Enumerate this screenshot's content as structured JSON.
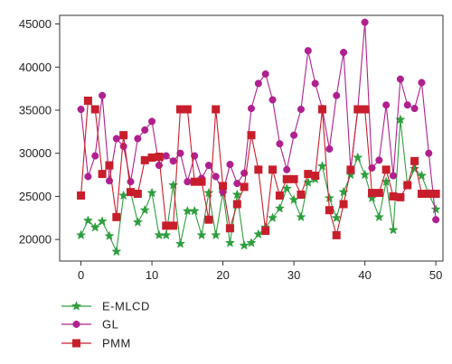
{
  "chart_data": {
    "type": "line",
    "title": "",
    "xlabel": "",
    "ylabel": "",
    "xlim": [
      -3,
      51
    ],
    "ylim": [
      17500,
      46000
    ],
    "xticks": [
      0,
      10,
      20,
      30,
      40,
      50
    ],
    "yticks": [
      20000,
      25000,
      30000,
      35000,
      40000,
      45000
    ],
    "x": [
      0,
      1,
      2,
      3,
      4,
      5,
      6,
      7,
      8,
      9,
      10,
      11,
      12,
      13,
      14,
      15,
      16,
      17,
      18,
      19,
      20,
      21,
      22,
      23,
      24,
      25,
      26,
      27,
      28,
      29,
      30,
      31,
      32,
      33,
      34,
      35,
      36,
      37,
      38,
      39,
      40,
      41,
      42,
      43,
      44,
      45,
      46,
      47,
      48,
      49,
      50
    ],
    "legend_position": "bottom-left",
    "series": [
      {
        "name": "E-MLCD",
        "color": "#2e9e3e",
        "marker": "star",
        "values": [
          20500,
          22200,
          21400,
          22100,
          20400,
          18600,
          25100,
          25500,
          22000,
          23400,
          25400,
          20500,
          20500,
          26300,
          19500,
          23300,
          23300,
          20500,
          25400,
          20500,
          25400,
          19600,
          25200,
          19300,
          19600,
          20600,
          21400,
          22500,
          23600,
          25900,
          24600,
          22600,
          26600,
          27000,
          28500,
          24800,
          22500,
          25500,
          27500,
          29500,
          27500,
          24800,
          22600,
          26700,
          21100,
          33900,
          26300,
          28200,
          27400,
          25300,
          23500
        ]
      },
      {
        "name": "GL",
        "color": "#b0208f",
        "marker": "circle",
        "values": [
          35100,
          27300,
          29700,
          36700,
          26800,
          31700,
          30800,
          26700,
          31700,
          32700,
          33700,
          28600,
          29700,
          29100,
          30000,
          26700,
          29700,
          27100,
          28600,
          27300,
          25500,
          28700,
          26500,
          27700,
          35200,
          38100,
          39200,
          36200,
          31100,
          28100,
          32100,
          35100,
          41900,
          38100,
          35200,
          30500,
          36700,
          41700,
          28100,
          35100,
          45200,
          28300,
          29200,
          35600,
          27400,
          38600,
          35600,
          35200,
          38200,
          30000,
          22300
        ]
      },
      {
        "name": "PMM",
        "color": "#c81e2c",
        "marker": "square",
        "values": [
          25100,
          36100,
          35100,
          27600,
          28600,
          22600,
          32100,
          25500,
          25300,
          29200,
          29500,
          29600,
          21600,
          21600,
          35100,
          35100,
          26700,
          26700,
          22300,
          35100,
          26200,
          21300,
          24100,
          26100,
          32100,
          28100,
          21000,
          28100,
          25100,
          27000,
          27000,
          25200,
          27600,
          27400,
          35100,
          23400,
          20500,
          24100,
          28100,
          35100,
          35100,
          25400,
          25400,
          28100,
          25000,
          24900,
          26300,
          29100,
          25300,
          25300,
          25300
        ]
      }
    ]
  }
}
